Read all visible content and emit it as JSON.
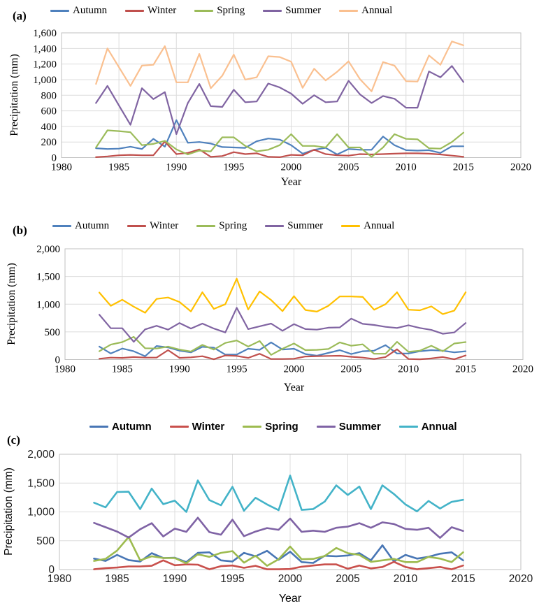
{
  "figure_note": "Three stacked seasonal/annual precipitation line charts",
  "chart_data": [
    {
      "type": "line",
      "id": "a",
      "panel_label": "(a)",
      "title": "",
      "ylabel": "Precipitation (mm)",
      "xlabel": "Year",
      "legend_position": "top",
      "grid": true,
      "xlim": [
        1980,
        2020
      ],
      "ylim": [
        0,
        1600
      ],
      "x_tick_labels": [
        "1980",
        "1985",
        "1990",
        "1995",
        "2000",
        "2005",
        "2010",
        "2015",
        "2020"
      ],
      "y_tick_labels": [
        "0",
        "200",
        "400",
        "600",
        "800",
        "1,000",
        "1,200",
        "1,400",
        "1,600"
      ],
      "x": [
        1983,
        1984,
        1985,
        1986,
        1987,
        1988,
        1989,
        1990,
        1991,
        1992,
        1993,
        1994,
        1995,
        1996,
        1997,
        1998,
        1999,
        2000,
        2001,
        2002,
        2003,
        2004,
        2005,
        2006,
        2007,
        2008,
        2009,
        2010,
        2011,
        2012,
        2013,
        2014,
        2015
      ],
      "series": [
        {
          "name": "Autumn",
          "color": "#4F81BD",
          "values": [
            120,
            110,
            115,
            140,
            110,
            240,
            140,
            480,
            190,
            200,
            180,
            135,
            130,
            125,
            210,
            245,
            230,
            160,
            50,
            100,
            125,
            40,
            110,
            100,
            100,
            270,
            160,
            95,
            90,
            95,
            60,
            145,
            145
          ]
        },
        {
          "name": "Winter",
          "color": "#C0504D",
          "values": [
            5,
            15,
            30,
            35,
            30,
            30,
            205,
            45,
            60,
            105,
            10,
            20,
            70,
            45,
            55,
            10,
            5,
            35,
            30,
            100,
            45,
            30,
            25,
            45,
            40,
            45,
            50,
            55,
            55,
            50,
            40,
            25,
            10
          ]
        },
        {
          "name": "Spring",
          "color": "#9BBB59",
          "values": [
            130,
            350,
            340,
            325,
            160,
            175,
            215,
            105,
            40,
            90,
            80,
            260,
            260,
            150,
            80,
            100,
            160,
            300,
            150,
            150,
            130,
            300,
            130,
            130,
            10,
            130,
            300,
            240,
            235,
            120,
            115,
            200,
            320
          ]
        },
        {
          "name": "Summer",
          "color": "#8064A2",
          "values": [
            700,
            920,
            670,
            420,
            890,
            750,
            840,
            300,
            700,
            945,
            660,
            650,
            870,
            710,
            720,
            950,
            900,
            820,
            690,
            800,
            710,
            720,
            985,
            810,
            700,
            790,
            755,
            640,
            640,
            1105,
            1030,
            1175,
            970
          ]
        },
        {
          "name": "Annual",
          "color": "#FAC090",
          "values": [
            945,
            1400,
            1160,
            920,
            1180,
            1190,
            1430,
            965,
            965,
            1330,
            890,
            1050,
            1320,
            1000,
            1030,
            1300,
            1290,
            1230,
            895,
            1140,
            990,
            1100,
            1235,
            1005,
            850,
            1225,
            1180,
            980,
            975,
            1310,
            1190,
            1490,
            1440
          ]
        }
      ]
    },
    {
      "type": "line",
      "id": "b",
      "panel_label": "(b)",
      "title": "",
      "ylabel": "Precipitation (mm)",
      "xlabel": "Year",
      "legend_position": "top",
      "grid": true,
      "xlim": [
        1980,
        2020
      ],
      "ylim": [
        0,
        2000
      ],
      "x_tick_labels": [
        "1980",
        "1985",
        "1990",
        "1995",
        "2000",
        "2005",
        "2010",
        "2015",
        "2020"
      ],
      "y_tick_labels": [
        "0",
        "500",
        "1,000",
        "1,500",
        "2,000"
      ],
      "x": [
        1983,
        1984,
        1985,
        1986,
        1987,
        1988,
        1989,
        1990,
        1991,
        1992,
        1993,
        1994,
        1995,
        1996,
        1997,
        1998,
        1999,
        2000,
        2001,
        2002,
        2003,
        2004,
        2005,
        2006,
        2007,
        2008,
        2009,
        2010,
        2011,
        2012,
        2013,
        2014,
        2015
      ],
      "series": [
        {
          "name": "Autumn",
          "color": "#4F81BD",
          "values": [
            235,
            110,
            200,
            150,
            60,
            245,
            220,
            160,
            130,
            230,
            215,
            90,
            90,
            195,
            175,
            310,
            180,
            195,
            100,
            70,
            120,
            170,
            100,
            150,
            160,
            260,
            110,
            110,
            150,
            170,
            160,
            130,
            150
          ]
        },
        {
          "name": "Winter",
          "color": "#C0504D",
          "values": [
            15,
            35,
            30,
            45,
            35,
            35,
            170,
            30,
            40,
            60,
            5,
            75,
            65,
            30,
            105,
            10,
            10,
            15,
            55,
            60,
            65,
            70,
            50,
            35,
            10,
            45,
            185,
            10,
            5,
            20,
            45,
            5,
            75
          ]
        },
        {
          "name": "Spring",
          "color": "#9BBB59",
          "values": [
            150,
            270,
            315,
            410,
            205,
            200,
            235,
            180,
            145,
            265,
            180,
            300,
            345,
            235,
            335,
            85,
            195,
            290,
            170,
            175,
            190,
            310,
            250,
            275,
            105,
            105,
            320,
            140,
            160,
            250,
            150,
            290,
            315
          ]
        },
        {
          "name": "Summer",
          "color": "#8064A2",
          "values": [
            810,
            565,
            565,
            320,
            545,
            610,
            540,
            660,
            560,
            650,
            560,
            490,
            935,
            550,
            600,
            650,
            520,
            640,
            550,
            540,
            575,
            580,
            740,
            645,
            625,
            590,
            570,
            620,
            570,
            535,
            465,
            490,
            660
          ]
        },
        {
          "name": "Annual",
          "color": "#FFC000",
          "values": [
            1210,
            970,
            1080,
            955,
            845,
            1095,
            1120,
            1040,
            870,
            1215,
            915,
            1000,
            1460,
            905,
            1230,
            1075,
            875,
            1145,
            895,
            865,
            970,
            1140,
            1140,
            1130,
            900,
            1000,
            1215,
            900,
            890,
            960,
            820,
            885,
            1215
          ]
        }
      ]
    },
    {
      "type": "line",
      "id": "c",
      "panel_label": "(c)",
      "title": "",
      "ylabel": "Precipitation (mm)",
      "xlabel": "Year",
      "legend_position": "top",
      "grid": true,
      "xlim": [
        1980,
        2020
      ],
      "ylim": [
        0,
        2000
      ],
      "x_tick_labels": [
        "1980",
        "1985",
        "1990",
        "1995",
        "2000",
        "2005",
        "2010",
        "2015",
        "2020"
      ],
      "y_tick_labels": [
        "0",
        "500",
        "1,000",
        "1,500",
        "2,000"
      ],
      "x": [
        1983,
        1984,
        1985,
        1986,
        1987,
        1988,
        1989,
        1990,
        1991,
        1992,
        1993,
        1994,
        1995,
        1996,
        1997,
        1998,
        1999,
        2000,
        2001,
        2002,
        2003,
        2004,
        2005,
        2006,
        2007,
        2008,
        2009,
        2010,
        2011,
        2012,
        2013,
        2014,
        2015
      ],
      "series": [
        {
          "name": "Autumn",
          "color": "#4876B5",
          "values": [
            190,
            150,
            255,
            165,
            140,
            285,
            200,
            205,
            130,
            290,
            300,
            160,
            140,
            290,
            230,
            325,
            170,
            310,
            130,
            115,
            240,
            230,
            245,
            285,
            160,
            420,
            140,
            255,
            190,
            220,
            275,
            300,
            160
          ]
        },
        {
          "name": "Winter",
          "color": "#C9504C",
          "values": [
            5,
            25,
            35,
            55,
            55,
            65,
            160,
            75,
            90,
            85,
            5,
            60,
            70,
            30,
            65,
            5,
            5,
            10,
            50,
            70,
            90,
            90,
            15,
            70,
            20,
            45,
            135,
            45,
            5,
            25,
            45,
            5,
            70
          ]
        },
        {
          "name": "Spring",
          "color": "#9DBB4F",
          "values": [
            150,
            185,
            330,
            565,
            160,
            230,
            200,
            200,
            110,
            265,
            220,
            290,
            320,
            120,
            240,
            65,
            180,
            400,
            180,
            185,
            235,
            375,
            285,
            255,
            135,
            160,
            185,
            130,
            130,
            220,
            190,
            130,
            300
          ]
        },
        {
          "name": "Summer",
          "color": "#7F63A5",
          "values": [
            810,
            735,
            660,
            555,
            700,
            805,
            575,
            710,
            655,
            900,
            650,
            605,
            865,
            580,
            660,
            720,
            690,
            885,
            655,
            675,
            655,
            725,
            745,
            805,
            725,
            820,
            790,
            705,
            690,
            725,
            550,
            735,
            670
          ]
        },
        {
          "name": "Annual",
          "color": "#43B3C8",
          "values": [
            1160,
            1080,
            1345,
            1350,
            1050,
            1405,
            1135,
            1195,
            1000,
            1545,
            1205,
            1115,
            1435,
            1020,
            1245,
            1130,
            1030,
            1630,
            1035,
            1050,
            1180,
            1460,
            1295,
            1440,
            1050,
            1460,
            1310,
            1130,
            1010,
            1190,
            1060,
            1175,
            1210
          ]
        }
      ]
    }
  ]
}
